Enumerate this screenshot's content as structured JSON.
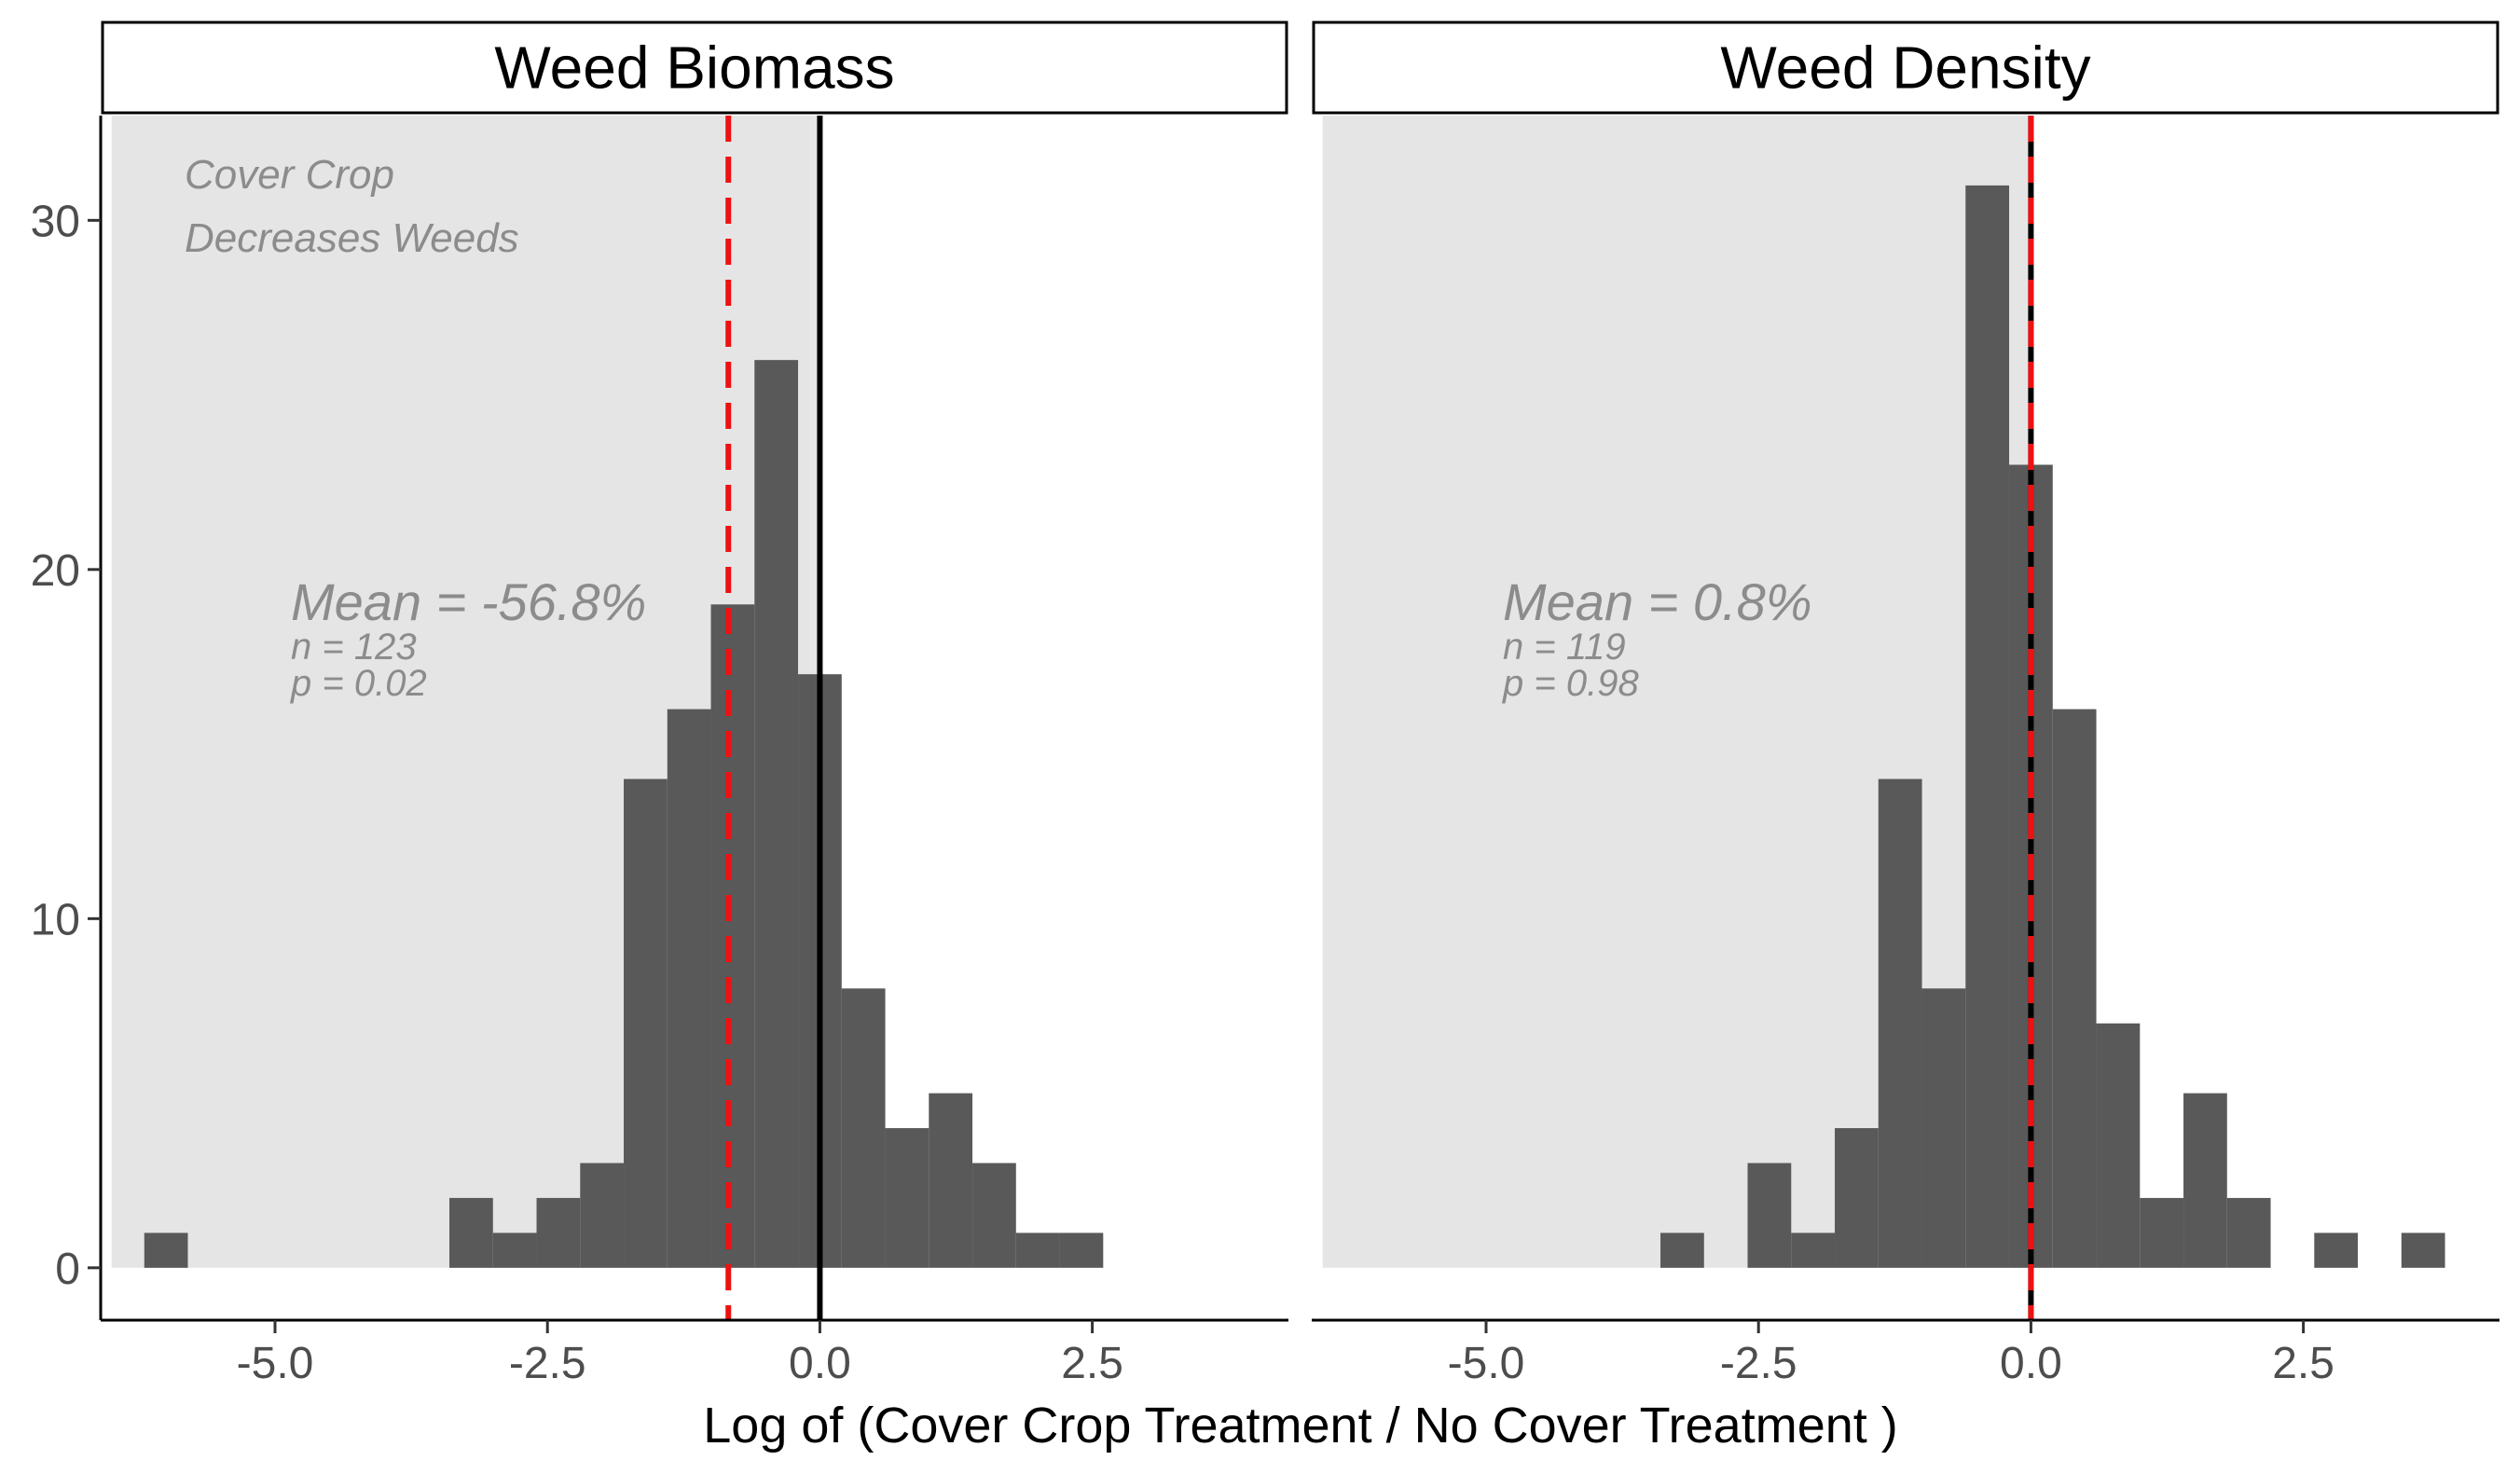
{
  "colors": {
    "background": "#ffffff",
    "bar": "#595959",
    "shade": "#e5e5e5",
    "mean_line": "#ee1111",
    "zero_line": "#000000",
    "annotation": "#8c8c8c",
    "tick_text": "#4d4d4d"
  },
  "chart_data": {
    "type": "bar",
    "xlabel": "Log of (Cover Crop Treatment / No Cover Treatment )",
    "ylabel": "",
    "xlim": [
      -6.6,
      4.3
    ],
    "ylim": [
      -1.5,
      33
    ],
    "x_ticks": [
      -5.0,
      -2.5,
      0.0,
      2.5
    ],
    "x_tick_labels": [
      "-5.0",
      "-2.5",
      "0.0",
      "2.5"
    ],
    "y_ticks": [
      0,
      10,
      20,
      30
    ],
    "y_tick_labels": [
      "0",
      "10",
      "20",
      "30"
    ],
    "grid": false,
    "bin_width": 0.4,
    "shaded_region": {
      "x_from": -6.5,
      "x_to": 0.0
    },
    "panels": [
      {
        "title": "Weed Biomass",
        "region_label": [
          "Cover Crop",
          "Decreases Weeds"
        ],
        "mean_label": "Mean = -56.8%",
        "n_label": "n = 123",
        "p_label": "p = 0.02",
        "mean_line_x": -0.84,
        "zero_line_x": 0.0,
        "bins": [
          {
            "x0": -6.2,
            "count": 1
          },
          {
            "x0": -3.4,
            "count": 2
          },
          {
            "x0": -3.0,
            "count": 1
          },
          {
            "x0": -2.6,
            "count": 2
          },
          {
            "x0": -2.2,
            "count": 3
          },
          {
            "x0": -1.8,
            "count": 14
          },
          {
            "x0": -1.4,
            "count": 16
          },
          {
            "x0": -1.0,
            "count": 19
          },
          {
            "x0": -0.6,
            "count": 26
          },
          {
            "x0": -0.2,
            "count": 17
          },
          {
            "x0": 0.2,
            "count": 8
          },
          {
            "x0": 0.6,
            "count": 4
          },
          {
            "x0": 1.0,
            "count": 5
          },
          {
            "x0": 1.4,
            "count": 3
          },
          {
            "x0": 1.8,
            "count": 1
          },
          {
            "x0": 2.2,
            "count": 1
          }
        ]
      },
      {
        "title": "Weed Density",
        "region_label": [],
        "mean_label": "Mean = 0.8%",
        "n_label": "n = 119",
        "p_label": "p = 0.98",
        "mean_line_x": 0.0,
        "zero_line_x": 0.0,
        "bins": [
          {
            "x0": -3.4,
            "count": 1
          },
          {
            "x0": -2.6,
            "count": 3
          },
          {
            "x0": -2.2,
            "count": 1
          },
          {
            "x0": -1.8,
            "count": 4
          },
          {
            "x0": -1.4,
            "count": 14
          },
          {
            "x0": -1.0,
            "count": 8
          },
          {
            "x0": -0.6,
            "count": 31
          },
          {
            "x0": -0.2,
            "count": 23
          },
          {
            "x0": 0.2,
            "count": 16
          },
          {
            "x0": 0.6,
            "count": 7
          },
          {
            "x0": 1.0,
            "count": 2
          },
          {
            "x0": 1.4,
            "count": 5
          },
          {
            "x0": 1.8,
            "count": 2
          },
          {
            "x0": 2.6,
            "count": 1
          },
          {
            "x0": 3.4,
            "count": 1
          }
        ]
      }
    ]
  }
}
